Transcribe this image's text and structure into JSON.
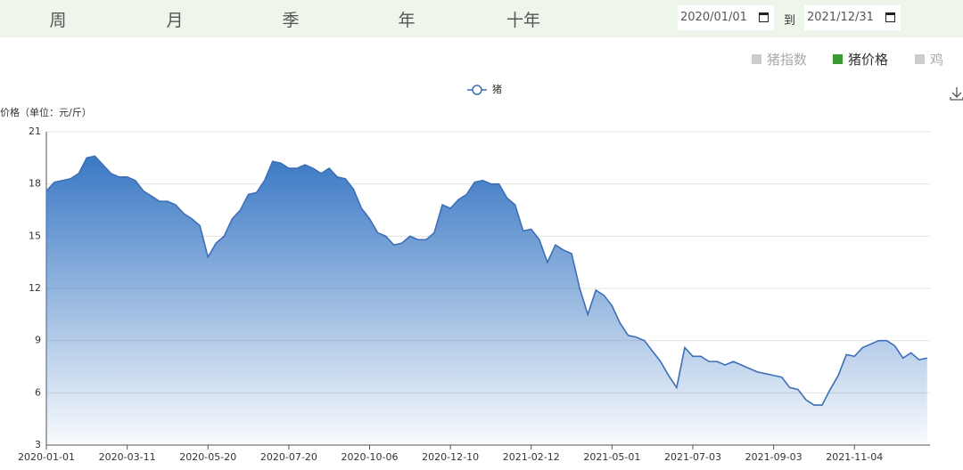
{
  "tabs": [
    "周",
    "月",
    "季",
    "年",
    "十年"
  ],
  "date_range": {
    "start": "2020/01/01",
    "separator": "到",
    "end": "2021/12/31"
  },
  "toggles": [
    {
      "label": "猪指数",
      "color": "#cccccc"
    },
    {
      "label": "猪价格",
      "color": "#3a9a34"
    },
    {
      "label": "鸡",
      "color": "#cccccc"
    }
  ],
  "chart_data": {
    "type": "area",
    "y_axis_label": "价格（单位：元/斤）",
    "categories": [
      "2020-01-01",
      null,
      null,
      null,
      null,
      null,
      null,
      null,
      null,
      null,
      "2020-03-11",
      null,
      null,
      null,
      null,
      null,
      null,
      null,
      null,
      null,
      "2020-05-20",
      null,
      null,
      null,
      null,
      null,
      null,
      null,
      null,
      null,
      "2020-07-20",
      null,
      null,
      null,
      null,
      null,
      null,
      null,
      null,
      null,
      "2020-10-06",
      null,
      null,
      null,
      null,
      null,
      null,
      null,
      null,
      null,
      "2020-12-10",
      null,
      null,
      null,
      null,
      null,
      null,
      null,
      null,
      null,
      "2021-02-12",
      null,
      null,
      null,
      null,
      null,
      null,
      null,
      null,
      null,
      "2021-05-01",
      null,
      null,
      null,
      null,
      null,
      null,
      null,
      null,
      null,
      "2021-07-03",
      null,
      null,
      null,
      null,
      null,
      null,
      null,
      null,
      null,
      "2021-09-03",
      null,
      null,
      null,
      null,
      null,
      null,
      null,
      null,
      null,
      "2021-11-04",
      null,
      null,
      null,
      null,
      null,
      null,
      null,
      null,
      null
    ],
    "series": [
      {
        "name": "猪",
        "color": "#3d6fb6",
        "values": [
          17.6,
          18.1,
          18.2,
          18.3,
          18.6,
          19.5,
          19.6,
          19.1,
          18.6,
          18.4,
          18.4,
          18.2,
          17.6,
          17.3,
          17.0,
          17.0,
          16.8,
          16.3,
          16.0,
          15.6,
          13.8,
          14.6,
          15.0,
          16.0,
          16.5,
          17.4,
          17.5,
          18.2,
          19.3,
          19.2,
          18.9,
          18.9,
          19.1,
          18.9,
          18.6,
          18.9,
          18.4,
          18.3,
          17.7,
          16.6,
          16.0,
          15.2,
          15.0,
          14.5,
          14.6,
          15.0,
          14.8,
          14.8,
          15.2,
          16.8,
          16.6,
          17.1,
          17.4,
          18.1,
          18.2,
          18.0,
          18.0,
          17.2,
          16.8,
          15.3,
          15.4,
          14.8,
          13.5,
          14.5,
          14.2,
          14.0,
          12.0,
          10.5,
          11.9,
          11.6,
          11.0,
          10.0,
          9.3,
          9.2,
          9.0,
          8.4,
          7.8,
          7.0,
          6.3,
          8.6,
          8.1,
          8.1,
          7.8,
          7.8,
          7.6,
          7.8,
          7.6,
          7.4,
          7.2,
          7.1,
          7.0,
          6.9,
          6.3,
          6.2,
          5.6,
          5.3,
          5.3,
          6.2,
          7.0,
          8.2,
          8.1,
          8.6,
          8.8,
          9.0,
          9.0,
          8.7,
          8.0,
          8.3,
          7.9,
          8.0
        ]
      }
    ],
    "ylim": [
      3,
      21
    ],
    "yticks": [
      3,
      6,
      9,
      12,
      15,
      18,
      21
    ],
    "grid": true
  }
}
